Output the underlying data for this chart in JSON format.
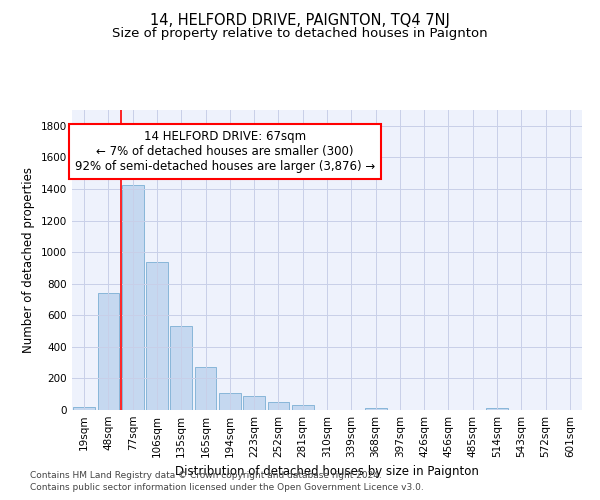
{
  "title": "14, HELFORD DRIVE, PAIGNTON, TQ4 7NJ",
  "subtitle": "Size of property relative to detached houses in Paignton",
  "xlabel": "Distribution of detached houses by size in Paignton",
  "ylabel": "Number of detached properties",
  "footer1": "Contains HM Land Registry data © Crown copyright and database right 2024.",
  "footer2": "Contains public sector information licensed under the Open Government Licence v3.0.",
  "categories": [
    "19sqm",
    "48sqm",
    "77sqm",
    "106sqm",
    "135sqm",
    "165sqm",
    "194sqm",
    "223sqm",
    "252sqm",
    "281sqm",
    "310sqm",
    "339sqm",
    "368sqm",
    "397sqm",
    "426sqm",
    "456sqm",
    "485sqm",
    "514sqm",
    "543sqm",
    "572sqm",
    "601sqm"
  ],
  "values": [
    20,
    740,
    1425,
    940,
    530,
    270,
    105,
    90,
    50,
    30,
    0,
    0,
    15,
    0,
    0,
    0,
    0,
    13,
    0,
    0,
    0
  ],
  "bar_color": "#c5d8f0",
  "bar_edgecolor": "#7bafd4",
  "redline_x": 1.5,
  "annotation_text_line1": "14 HELFORD DRIVE: 67sqm",
  "annotation_text_line2": "← 7% of detached houses are smaller (300)",
  "annotation_text_line3": "92% of semi-detached houses are larger (3,876) →",
  "ylim": [
    0,
    1900
  ],
  "yticks": [
    0,
    200,
    400,
    600,
    800,
    1000,
    1200,
    1400,
    1600,
    1800
  ],
  "bg_color": "#eef2fc",
  "grid_color": "#c8cfe8",
  "title_fontsize": 10.5,
  "subtitle_fontsize": 9.5,
  "axis_label_fontsize": 8.5,
  "tick_fontsize": 7.5,
  "footer_fontsize": 6.5,
  "annot_fontsize": 8.5
}
